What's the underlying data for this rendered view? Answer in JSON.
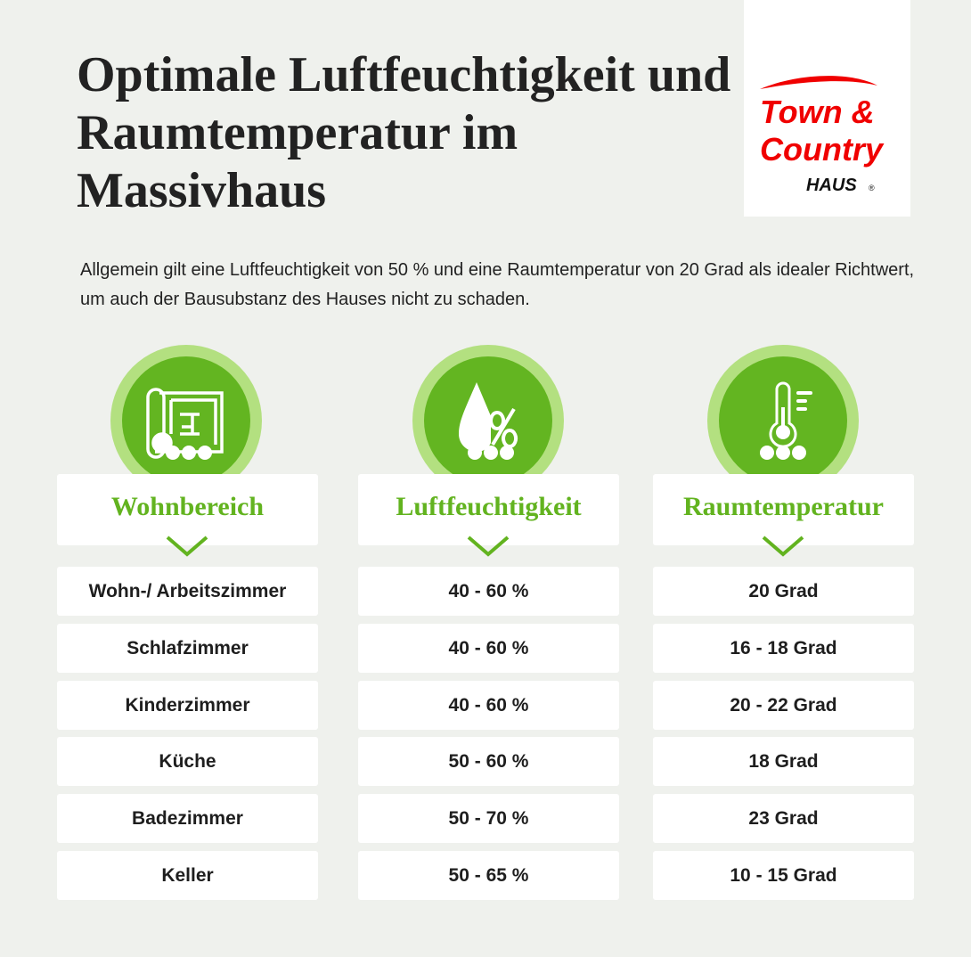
{
  "title": "Optimale Luftfeuchtigkeit und Raumtemperatur im Massivhaus",
  "logo": {
    "line1": "Town &",
    "line2": "Country",
    "line3": "HAUS",
    "mark": "®",
    "color": "#f00000"
  },
  "intro": "Allgemein gilt eine Luftfeuchtigkeit von 50 % und eine Raumtemperatur von 20 Grad als idealer Richtwert, um auch der Bausubstanz des Hauses nicht zu schaden.",
  "colors": {
    "accent": "#62b31f",
    "accent_light": "#b3e080",
    "background": "#eff1ed"
  },
  "columns": [
    {
      "header": "Wohnbereich",
      "icon": "floorplan-icon"
    },
    {
      "header": "Luftfeuchtigkeit",
      "icon": "humidity-drop-icon"
    },
    {
      "header": "Raumtemperatur",
      "icon": "thermometer-icon"
    }
  ],
  "rows": [
    [
      "Wohn-/ Arbeitszimmer",
      "40 - 60 %",
      "20 Grad"
    ],
    [
      "Schlafzimmer",
      "40 - 60 %",
      "16 - 18 Grad"
    ],
    [
      "Kinderzimmer",
      "40 - 60 %",
      "20 - 22 Grad"
    ],
    [
      "Küche",
      "50 - 60 %",
      "18 Grad"
    ],
    [
      "Badezimmer",
      "50 - 70 %",
      "23 Grad"
    ],
    [
      "Keller",
      "50 - 65 %",
      "10 - 15 Grad"
    ]
  ]
}
